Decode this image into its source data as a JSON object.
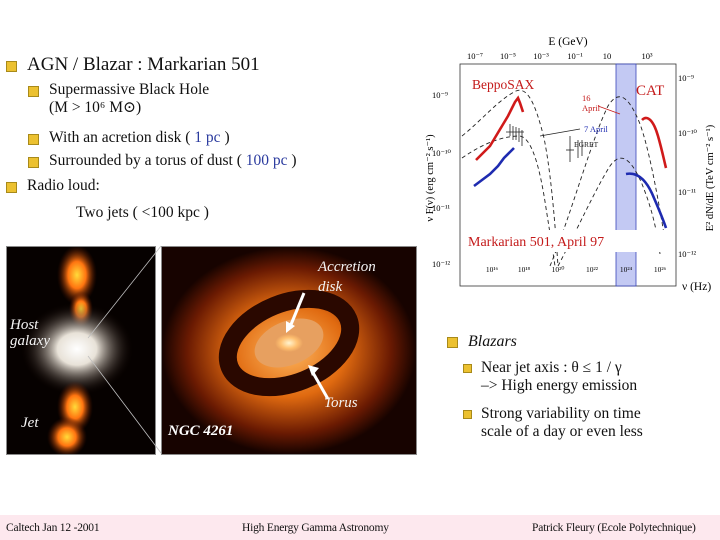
{
  "slide": {
    "title": "AGN / Blazar : Markarian 501",
    "bullets": [
      {
        "text": "Supermassive Black Hole",
        "sub": "(M > 10⁶ M⊙)"
      },
      {
        "text": "With an acretion disk (",
        "value": "1 pc",
        "tail": ")"
      },
      {
        "text": "Surrounded by a torus of dust (",
        "value": "100 pc",
        "tail": ")"
      }
    ],
    "radio": {
      "text": "Radio loud:",
      "sub": "Two jets ( <100 kpc )"
    }
  },
  "images": {
    "host": {
      "label_host": "Host",
      "label_galaxy": "galaxy",
      "label_jet": "Jet"
    },
    "ngc": {
      "title": "NGC 4261",
      "accretion": "Accretion",
      "disk": "disk",
      "torus": "Torus"
    }
  },
  "sed": {
    "top_axis_label": "E (GeV)",
    "top_ticks": [
      "10⁻⁷",
      "10⁻⁵",
      "10⁻³",
      "10⁻¹",
      "10",
      "10³"
    ],
    "left_axis_label": "ν F(ν) (erg cm⁻² s⁻¹)",
    "left_ticks": [
      "10⁻⁹",
      "10⁻¹⁰",
      "10⁻¹¹",
      "10⁻¹²"
    ],
    "right_axis_label": "E² dN/dE (TeV cm⁻² s⁻¹)",
    "right_ticks": [
      "10⁻⁹",
      "10⁻¹⁰",
      "10⁻¹¹",
      "10⁻¹²"
    ],
    "bottom_axis_label": "ν (Hz)",
    "bottom_ticks": [
      "10¹⁶",
      "10¹⁸",
      "10²⁰",
      "10²²",
      "10²⁴",
      "10²⁶"
    ],
    "label_beppo": "BeppoSAX",
    "label_cat": "CAT",
    "label_16april": "16",
    "label_april": "April",
    "label_7april": "7 April",
    "label_egret": "EGRET",
    "caption": "Markarian 501, April 97",
    "colors": {
      "red": "#d01a1a",
      "blue": "#1e2bb0",
      "band": "#aab2ee",
      "label": "#c41a1a"
    }
  },
  "blazars": {
    "head": "Blazars",
    "items": [
      {
        "l1": "Near jet axis : θ ≤ 1 / γ",
        "l2": "–> High energy emission"
      },
      {
        "l1": "Strong variability on time",
        "l2": "scale of a day or even less"
      }
    ]
  },
  "footer": {
    "left": "Caltech Jan 12 -2001",
    "center": "High Energy Gamma Astronomy",
    "right": "Patrick Fleury (Ecole Polytechnique)"
  },
  "theme": {
    "bullet": "#ecc130",
    "blue_text": "#2a3a9e",
    "footer_bg": "#fde8ee"
  }
}
